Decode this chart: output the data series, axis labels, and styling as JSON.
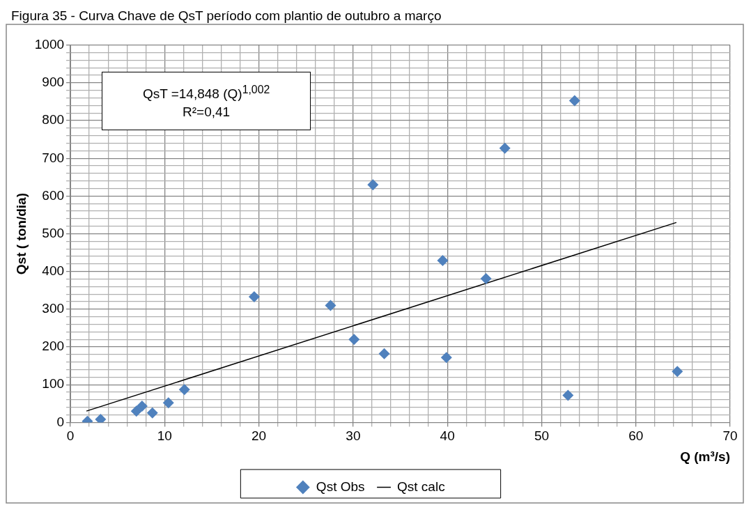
{
  "chart_data": {
    "type": "scatter",
    "title": "Figura 35 - Curva Chave de QsT período com plantio de outubro a março",
    "xlabel": "Q (m³/s)",
    "ylabel": "Qst ( ton/dia)",
    "annotations": [
      "QsT =14,848 (Q)$^{1,002}$\nR²=0,41"
    ],
    "series": [
      {
        "name": "Qst Obs",
        "color": "#4f81bd",
        "marker": "diamond",
        "x": [
          1.8,
          3.2,
          7.0,
          7.6,
          8.7,
          10.4,
          12.1,
          19.5,
          27.6,
          30.1,
          32.1,
          33.3,
          39.5,
          39.9,
          44.1,
          46.1,
          53.5,
          52.8,
          64.4
        ],
        "values": [
          3,
          8,
          30,
          43,
          25,
          52,
          87,
          333,
          310,
          220,
          630,
          182,
          429,
          172,
          381,
          727,
          853,
          72,
          135
        ]
      },
      {
        "name": "Qst calc",
        "type": "line",
        "color": "#000000",
        "marker": "none",
        "x": [
          1.7,
          64.3
        ],
        "values": [
          30,
          530
        ]
      }
    ],
    "xlim": [
      0,
      70
    ],
    "ylim": [
      0,
      1000
    ],
    "xticks": [
      0,
      {
        "value": 2,
        "label": null
      },
      {
        "value": 4,
        "label": null
      },
      {
        "value": 6,
        "label": null
      },
      {
        "value": 8,
        "label": null
      },
      10,
      {
        "value": 12,
        "label": null
      },
      {
        "value": 14,
        "label": null
      },
      {
        "value": 16,
        "label": null
      },
      {
        "value": 18,
        "label": null
      },
      20,
      {
        "value": 22,
        "label": null
      },
      {
        "value": 24,
        "label": null
      },
      {
        "value": 26,
        "label": null
      },
      {
        "value": 28,
        "label": null
      },
      30,
      {
        "value": 32,
        "label": null
      },
      {
        "value": 34,
        "label": null
      },
      {
        "value": 36,
        "label": null
      },
      {
        "value": 38,
        "label": null
      },
      40,
      {
        "value": 42,
        "label": null
      },
      {
        "value": 44,
        "label": null
      },
      {
        "value": 46,
        "label": null
      },
      {
        "value": 48,
        "label": null
      },
      50,
      {
        "value": 52,
        "label": null
      },
      {
        "value": 54,
        "label": null
      },
      {
        "value": 56,
        "label": null
      },
      {
        "value": 58,
        "label": null
      },
      60,
      {
        "value": 62,
        "label": null
      },
      {
        "value": 64,
        "label": null
      },
      {
        "value": 66,
        "label": null
      },
      {
        "value": 68,
        "label": null
      },
      70
    ],
    "yticks": [
      0,
      {
        "value": 20,
        "label": null
      },
      {
        "value": 40,
        "label": null
      },
      {
        "value": 60,
        "label": null
      },
      {
        "value": 80,
        "label": null
      },
      100,
      {
        "value": 120,
        "label": null
      },
      {
        "value": 140,
        "label": null
      },
      {
        "value": 160,
        "label": null
      },
      {
        "value": 180,
        "label": null
      },
      200,
      {
        "value": 220,
        "label": null
      },
      {
        "value": 240,
        "label": null
      },
      {
        "value": 260,
        "label": null
      },
      {
        "value": 280,
        "label": null
      },
      300,
      {
        "value": 320,
        "label": null
      },
      {
        "value": 340,
        "label": null
      },
      {
        "value": 360,
        "label": null
      },
      {
        "value": 380,
        "label": null
      },
      400,
      {
        "value": 420,
        "label": null
      },
      {
        "value": 440,
        "label": null
      },
      {
        "value": 460,
        "label": null
      },
      {
        "value": 480,
        "label": null
      },
      500,
      {
        "value": 520,
        "label": null
      },
      {
        "value": 540,
        "label": null
      },
      {
        "value": 560,
        "label": null
      },
      {
        "value": 580,
        "label": null
      },
      600,
      {
        "value": 620,
        "label": null
      },
      {
        "value": 640,
        "label": null
      },
      {
        "value": 660,
        "label": null
      },
      {
        "value": 680,
        "label": null
      },
      700,
      {
        "value": 720,
        "label": null
      },
      {
        "value": 740,
        "label": null
      },
      {
        "value": 760,
        "label": null
      },
      {
        "value": 780,
        "label": null
      },
      800,
      {
        "value": 820,
        "label": null
      },
      {
        "value": 840,
        "label": null
      },
      {
        "value": 860,
        "label": null
      },
      {
        "value": 880,
        "label": null
      },
      900,
      {
        "value": 920,
        "label": null
      },
      {
        "value": 940,
        "label": null
      },
      {
        "value": 960,
        "label": null
      },
      {
        "value": 980,
        "label": null
      },
      1000
    ],
    "grid": true,
    "legend": "bottom"
  }
}
